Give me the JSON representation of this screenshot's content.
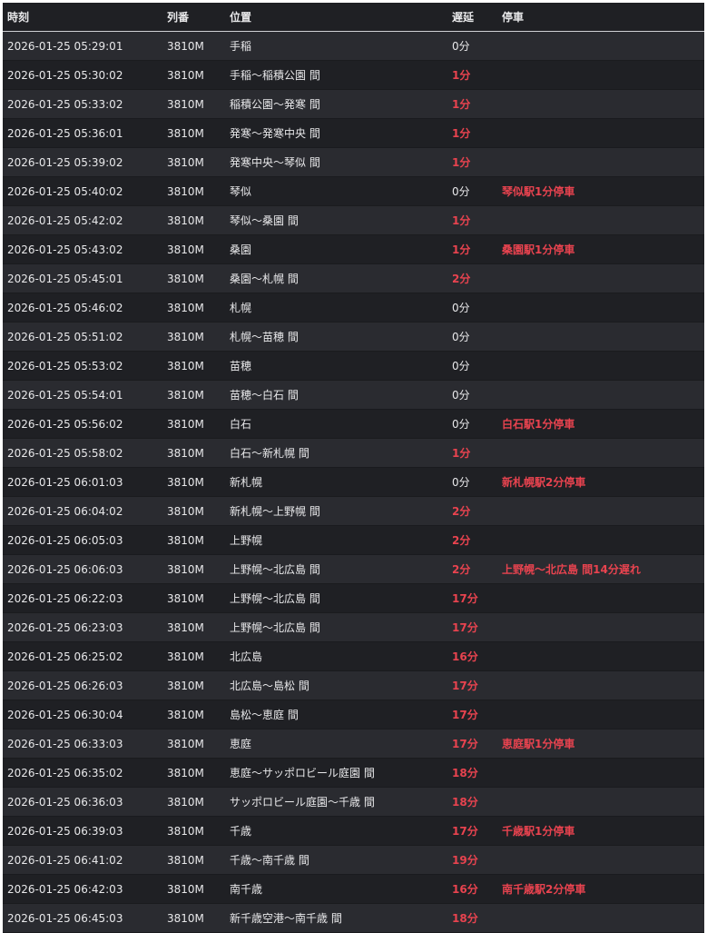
{
  "colors": {
    "late": "#e8434f",
    "row_odd": "#2a2b30",
    "row_even": "#1f2024",
    "text": "#e8e8ea"
  },
  "table": {
    "headers": [
      "時刻",
      "列番",
      "位置",
      "遅延",
      "停車"
    ],
    "rows": [
      [
        "2026-01-25 05:29:01",
        "3810M",
        "手稲",
        "0分",
        ""
      ],
      [
        "2026-01-25 05:30:02",
        "3810M",
        "手稲〜稲積公園 間",
        "1分",
        ""
      ],
      [
        "2026-01-25 05:33:02",
        "3810M",
        "稲積公園〜発寒 間",
        "1分",
        ""
      ],
      [
        "2026-01-25 05:36:01",
        "3810M",
        "発寒〜発寒中央 間",
        "1分",
        ""
      ],
      [
        "2026-01-25 05:39:02",
        "3810M",
        "発寒中央〜琴似 間",
        "1分",
        ""
      ],
      [
        "2026-01-25 05:40:02",
        "3810M",
        "琴似",
        "0分",
        "琴似駅1分停車"
      ],
      [
        "2026-01-25 05:42:02",
        "3810M",
        "琴似〜桑園 間",
        "1分",
        ""
      ],
      [
        "2026-01-25 05:43:02",
        "3810M",
        "桑園",
        "1分",
        "桑園駅1分停車"
      ],
      [
        "2026-01-25 05:45:01",
        "3810M",
        "桑園〜札幌 間",
        "2分",
        ""
      ],
      [
        "2026-01-25 05:46:02",
        "3810M",
        "札幌",
        "0分",
        ""
      ],
      [
        "2026-01-25 05:51:02",
        "3810M",
        "札幌〜苗穂 間",
        "0分",
        ""
      ],
      [
        "2026-01-25 05:53:02",
        "3810M",
        "苗穂",
        "0分",
        ""
      ],
      [
        "2026-01-25 05:54:01",
        "3810M",
        "苗穂〜白石 間",
        "0分",
        ""
      ],
      [
        "2026-01-25 05:56:02",
        "3810M",
        "白石",
        "0分",
        "白石駅1分停車"
      ],
      [
        "2026-01-25 05:58:02",
        "3810M",
        "白石〜新札幌 間",
        "1分",
        ""
      ],
      [
        "2026-01-25 06:01:03",
        "3810M",
        "新札幌",
        "0分",
        "新札幌駅2分停車"
      ],
      [
        "2026-01-25 06:04:02",
        "3810M",
        "新札幌〜上野幌 間",
        "2分",
        ""
      ],
      [
        "2026-01-25 06:05:03",
        "3810M",
        "上野幌",
        "2分",
        ""
      ],
      [
        "2026-01-25 06:06:03",
        "3810M",
        "上野幌〜北広島 間",
        "2分",
        "上野幌〜北広島 間14分遅れ"
      ],
      [
        "2026-01-25 06:22:03",
        "3810M",
        "上野幌〜北広島 間",
        "17分",
        ""
      ],
      [
        "2026-01-25 06:23:03",
        "3810M",
        "上野幌〜北広島 間",
        "17分",
        ""
      ],
      [
        "2026-01-25 06:25:02",
        "3810M",
        "北広島",
        "16分",
        ""
      ],
      [
        "2026-01-25 06:26:03",
        "3810M",
        "北広島〜島松 間",
        "17分",
        ""
      ],
      [
        "2026-01-25 06:30:04",
        "3810M",
        "島松〜恵庭 間",
        "17分",
        ""
      ],
      [
        "2026-01-25 06:33:03",
        "3810M",
        "恵庭",
        "17分",
        "恵庭駅1分停車"
      ],
      [
        "2026-01-25 06:35:02",
        "3810M",
        "恵庭〜サッポロビール庭園 間",
        "18分",
        ""
      ],
      [
        "2026-01-25 06:36:03",
        "3810M",
        "サッポロビール庭園〜千歳 間",
        "18分",
        ""
      ],
      [
        "2026-01-25 06:39:03",
        "3810M",
        "千歳",
        "17分",
        "千歳駅1分停車"
      ],
      [
        "2026-01-25 06:41:02",
        "3810M",
        "千歳〜南千歳 間",
        "19分",
        ""
      ],
      [
        "2026-01-25 06:42:03",
        "3810M",
        "南千歳",
        "16分",
        "南千歳駅2分停車"
      ],
      [
        "2026-01-25 06:45:03",
        "3810M",
        "新千歳空港〜南千歳 間",
        "18分",
        ""
      ]
    ]
  }
}
